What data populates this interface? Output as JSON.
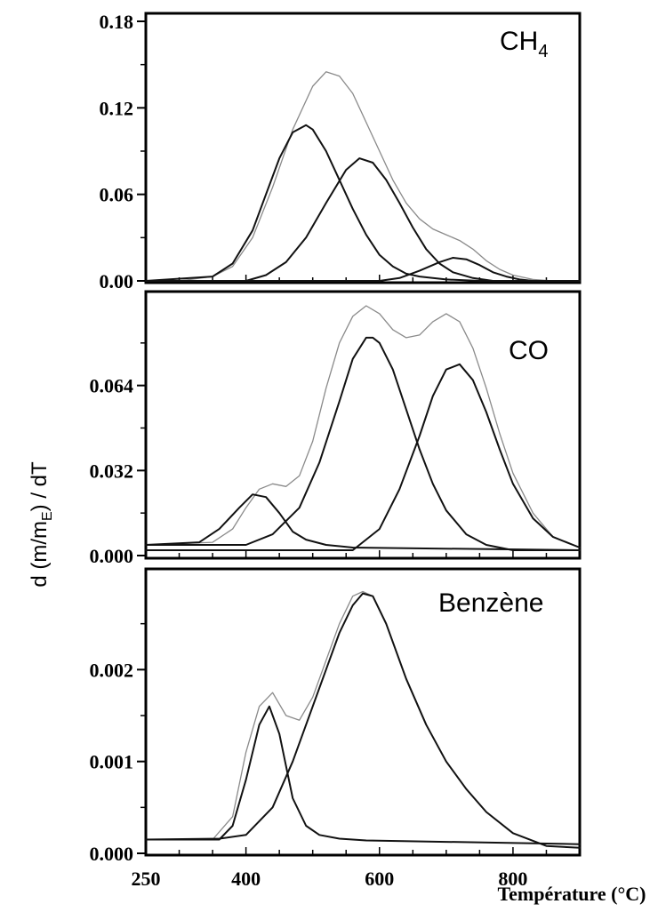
{
  "chart_data": [
    {
      "type": "line",
      "panel_label": "CH",
      "panel_label_sub": "4",
      "yticks": [
        "0.18",
        "0.12",
        "0.06",
        "0.00"
      ],
      "ytick_values": [
        0.18,
        0.12,
        0.06,
        0.0
      ],
      "ylim": [
        0,
        0.18
      ],
      "xlim": [
        250,
        900
      ],
      "series": [
        {
          "role": "total",
          "x": [
            250,
            300,
            350,
            380,
            410,
            440,
            470,
            500,
            520,
            540,
            560,
            580,
            600,
            620,
            640,
            660,
            680,
            700,
            720,
            740,
            760,
            780,
            800,
            830,
            860,
            900
          ],
          "y": [
            0.0,
            0.0,
            0.003,
            0.01,
            0.03,
            0.065,
            0.105,
            0.135,
            0.145,
            0.142,
            0.13,
            0.11,
            0.09,
            0.07,
            0.054,
            0.043,
            0.036,
            0.032,
            0.028,
            0.022,
            0.014,
            0.008,
            0.004,
            0.001,
            0.0,
            0.0
          ]
        },
        {
          "role": "component",
          "x": [
            250,
            350,
            380,
            410,
            430,
            450,
            470,
            490,
            500,
            520,
            540,
            560,
            580,
            600,
            620,
            640,
            660,
            700,
            750,
            800,
            900
          ],
          "y": [
            0.0,
            0.003,
            0.012,
            0.035,
            0.06,
            0.085,
            0.103,
            0.108,
            0.105,
            0.09,
            0.07,
            0.05,
            0.032,
            0.018,
            0.01,
            0.005,
            0.003,
            0.001,
            0.0,
            0.0,
            0.0
          ]
        },
        {
          "role": "component",
          "x": [
            250,
            400,
            430,
            460,
            490,
            520,
            550,
            570,
            590,
            610,
            630,
            650,
            670,
            690,
            710,
            740,
            770,
            800,
            900
          ],
          "y": [
            0.0,
            0.0,
            0.004,
            0.013,
            0.03,
            0.054,
            0.077,
            0.085,
            0.082,
            0.07,
            0.054,
            0.037,
            0.022,
            0.012,
            0.006,
            0.002,
            0.0,
            0.0,
            0.0
          ]
        },
        {
          "role": "component",
          "x": [
            250,
            600,
            630,
            660,
            690,
            710,
            730,
            750,
            770,
            790,
            810,
            830,
            900
          ],
          "y": [
            0.0,
            0.0,
            0.002,
            0.007,
            0.013,
            0.016,
            0.015,
            0.011,
            0.006,
            0.003,
            0.001,
            0.0,
            0.0
          ]
        }
      ]
    },
    {
      "type": "line",
      "panel_label": "CO",
      "panel_label_sub": "",
      "yticks": [
        "0.064",
        "0.032",
        "0.000"
      ],
      "ytick_values": [
        0.064,
        0.032,
        0.0
      ],
      "ylim": [
        0,
        0.096
      ],
      "xlim": [
        250,
        900
      ],
      "series": [
        {
          "role": "total",
          "x": [
            250,
            350,
            380,
            400,
            420,
            440,
            460,
            480,
            500,
            520,
            540,
            560,
            580,
            600,
            620,
            640,
            660,
            680,
            700,
            720,
            740,
            760,
            780,
            800,
            830,
            860,
            900
          ],
          "y": [
            0.004,
            0.005,
            0.01,
            0.018,
            0.025,
            0.027,
            0.026,
            0.03,
            0.043,
            0.063,
            0.08,
            0.09,
            0.094,
            0.091,
            0.085,
            0.082,
            0.083,
            0.088,
            0.091,
            0.088,
            0.078,
            0.063,
            0.046,
            0.031,
            0.016,
            0.007,
            0.003
          ]
        },
        {
          "role": "component",
          "x": [
            250,
            330,
            360,
            390,
            410,
            430,
            450,
            470,
            490,
            520,
            560,
            900
          ],
          "y": [
            0.004,
            0.005,
            0.01,
            0.018,
            0.023,
            0.022,
            0.016,
            0.009,
            0.006,
            0.004,
            0.003,
            0.002
          ]
        },
        {
          "role": "component",
          "x": [
            250,
            400,
            440,
            480,
            510,
            540,
            560,
            580,
            590,
            600,
            620,
            640,
            660,
            680,
            700,
            730,
            760,
            800,
            900
          ],
          "y": [
            0.004,
            0.004,
            0.008,
            0.018,
            0.035,
            0.058,
            0.074,
            0.082,
            0.082,
            0.08,
            0.07,
            0.055,
            0.04,
            0.027,
            0.017,
            0.008,
            0.004,
            0.002,
            0.002
          ]
        },
        {
          "role": "component",
          "x": [
            250,
            560,
            600,
            630,
            660,
            680,
            700,
            720,
            740,
            760,
            780,
            800,
            830,
            860,
            900
          ],
          "y": [
            0.002,
            0.002,
            0.01,
            0.025,
            0.045,
            0.06,
            0.07,
            0.072,
            0.066,
            0.054,
            0.04,
            0.027,
            0.014,
            0.007,
            0.003
          ]
        }
      ]
    },
    {
      "type": "line",
      "panel_label": "Benzène",
      "panel_label_sub": "",
      "yticks": [
        "0.002",
        "0.001",
        "0.000"
      ],
      "ytick_values": [
        0.002,
        0.001,
        0.0
      ],
      "ylim": [
        0,
        0.003
      ],
      "xlim": [
        250,
        900
      ],
      "xticks": [
        "250",
        "400",
        "600",
        "800"
      ],
      "xtick_values": [
        250,
        400,
        600,
        800
      ],
      "series": [
        {
          "role": "total",
          "x": [
            250,
            350,
            380,
            400,
            420,
            440,
            460,
            480,
            500,
            520,
            540,
            560,
            575,
            590,
            610,
            640,
            670,
            700,
            730,
            760,
            800,
            850,
            900
          ],
          "y": [
            0.00015,
            0.00015,
            0.0004,
            0.0011,
            0.0016,
            0.00175,
            0.0015,
            0.00145,
            0.0017,
            0.0021,
            0.0025,
            0.0028,
            0.00285,
            0.0028,
            0.0025,
            0.0019,
            0.0014,
            0.001,
            0.0007,
            0.00045,
            0.00022,
            8e-05,
            6e-05
          ]
        },
        {
          "role": "component",
          "x": [
            250,
            360,
            380,
            400,
            420,
            435,
            450,
            470,
            490,
            510,
            540,
            580,
            900
          ],
          "y": [
            0.00015,
            0.00015,
            0.0003,
            0.0008,
            0.0014,
            0.0016,
            0.0013,
            0.0006,
            0.0003,
            0.0002,
            0.00016,
            0.00014,
            0.0001
          ]
        },
        {
          "role": "component",
          "x": [
            250,
            360,
            400,
            440,
            470,
            500,
            520,
            540,
            560,
            575,
            590,
            610,
            640,
            670,
            700,
            730,
            760,
            800,
            850,
            900
          ],
          "y": [
            0.00015,
            0.00016,
            0.0002,
            0.0005,
            0.001,
            0.0016,
            0.002,
            0.0024,
            0.0027,
            0.00283,
            0.0028,
            0.0025,
            0.0019,
            0.0014,
            0.001,
            0.0007,
            0.00045,
            0.00022,
            8e-05,
            6e-05
          ]
        }
      ]
    }
  ],
  "ylabel_parts": {
    "pre": "d (m/m",
    "sub": "E",
    "post": ") / dT"
  },
  "xlabel": "Température (°C)",
  "colors": {
    "total": "#8a8a8a",
    "component": "#111111",
    "frame": "#000000"
  }
}
